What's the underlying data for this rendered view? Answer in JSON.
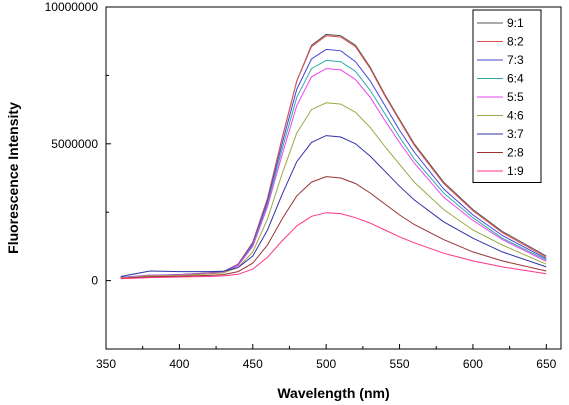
{
  "chart_data": {
    "type": "line",
    "title": "",
    "xlabel": "Wavelength (nm)",
    "ylabel": "Fluorescence Intensity",
    "xlim": [
      350,
      660
    ],
    "ylim": [
      -2500000,
      10000000
    ],
    "xticks": [
      350,
      400,
      450,
      500,
      550,
      600,
      650
    ],
    "yticks": [
      0,
      5000000,
      10000000
    ],
    "legend_position": "top-right",
    "x": [
      360,
      380,
      400,
      420,
      430,
      440,
      450,
      460,
      470,
      480,
      490,
      500,
      510,
      520,
      530,
      540,
      550,
      560,
      580,
      600,
      620,
      650
    ],
    "series": [
      {
        "name": "9:1",
        "color": "#555555",
        "values": [
          100000,
          180000,
          220000,
          280000,
          330000,
          600000,
          1400000,
          3000000,
          5200000,
          7300000,
          8600000,
          9000000,
          8950000,
          8600000,
          7800000,
          6800000,
          5900000,
          5000000,
          3600000,
          2600000,
          1800000,
          900000
        ]
      },
      {
        "name": "8:2",
        "color": "#e05050",
        "values": [
          100000,
          180000,
          220000,
          280000,
          330000,
          600000,
          1400000,
          3000000,
          5200000,
          7300000,
          8550000,
          8950000,
          8900000,
          8550000,
          7750000,
          6750000,
          5850000,
          4950000,
          3550000,
          2550000,
          1750000,
          850000
        ]
      },
      {
        "name": "7:3",
        "color": "#4444dd",
        "values": [
          120000,
          200000,
          220000,
          270000,
          320000,
          580000,
          1350000,
          2900000,
          5000000,
          7000000,
          8100000,
          8450000,
          8400000,
          8000000,
          7300000,
          6400000,
          5500000,
          4700000,
          3350000,
          2400000,
          1650000,
          800000
        ]
      },
      {
        "name": "6:4",
        "color": "#33aaaa",
        "values": [
          110000,
          190000,
          210000,
          260000,
          310000,
          560000,
          1300000,
          2800000,
          4800000,
          6700000,
          7750000,
          8050000,
          8000000,
          7650000,
          6950000,
          6100000,
          5250000,
          4450000,
          3200000,
          2300000,
          1550000,
          750000
        ]
      },
      {
        "name": "5:5",
        "color": "#ee44ee",
        "values": [
          110000,
          190000,
          210000,
          260000,
          300000,
          550000,
          1250000,
          2700000,
          4600000,
          6400000,
          7450000,
          7750000,
          7700000,
          7350000,
          6700000,
          5850000,
          5050000,
          4300000,
          3050000,
          2200000,
          1500000,
          700000
        ]
      },
      {
        "name": "4:6",
        "color": "#99aa44",
        "values": [
          100000,
          170000,
          190000,
          240000,
          280000,
          480000,
          1050000,
          2250000,
          3900000,
          5400000,
          6250000,
          6500000,
          6450000,
          6150000,
          5600000,
          4900000,
          4250000,
          3600000,
          2600000,
          1850000,
          1300000,
          600000
        ]
      },
      {
        "name": "3:7",
        "color": "#3333aa",
        "values": [
          150000,
          350000,
          330000,
          330000,
          340000,
          480000,
          900000,
          1850000,
          3150000,
          4350000,
          5050000,
          5300000,
          5250000,
          5000000,
          4550000,
          4000000,
          3450000,
          2950000,
          2150000,
          1550000,
          1050000,
          500000
        ]
      },
      {
        "name": "2:8",
        "color": "#993333",
        "values": [
          80000,
          140000,
          160000,
          190000,
          220000,
          330000,
          640000,
          1300000,
          2250000,
          3100000,
          3600000,
          3800000,
          3750000,
          3550000,
          3200000,
          2800000,
          2400000,
          2050000,
          1500000,
          1050000,
          720000,
          350000
        ]
      },
      {
        "name": "1:9",
        "color": "#ff3388",
        "values": [
          70000,
          110000,
          130000,
          150000,
          170000,
          230000,
          420000,
          850000,
          1450000,
          2000000,
          2350000,
          2480000,
          2450000,
          2300000,
          2100000,
          1850000,
          1600000,
          1380000,
          1000000,
          720000,
          500000,
          250000
        ]
      }
    ]
  }
}
